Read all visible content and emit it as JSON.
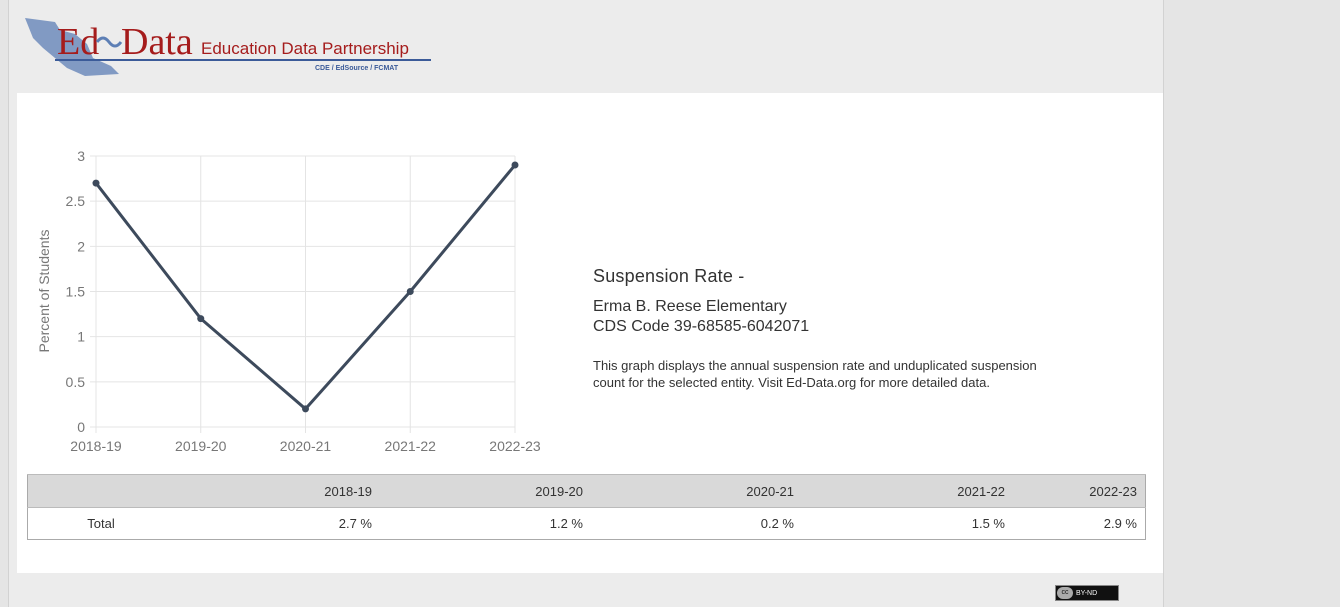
{
  "header": {
    "logo_ed": "Ed",
    "logo_data": "Data",
    "logo_partnership": "Education Data Partnership",
    "logo_sub": "CDE / EdSource / FCMAT"
  },
  "chart_data": {
    "type": "line",
    "categories": [
      "2018-19",
      "2019-20",
      "2020-21",
      "2021-22",
      "2022-23"
    ],
    "series": [
      {
        "values": [
          2.7,
          1.2,
          0.2,
          1.5,
          2.9
        ]
      }
    ],
    "ylabel": "Percent of Students",
    "xlabel": "",
    "ylim": [
      0,
      3
    ],
    "yticks": [
      "0",
      "0.5",
      "1",
      "1.5",
      "2",
      "2.5",
      "3"
    ],
    "grid": true,
    "line_color": "#3d4a5c"
  },
  "info": {
    "title": "Suspension Rate -",
    "entity": "Erma B. Reese Elementary",
    "cds": "CDS Code 39-68585-6042071",
    "description": "This graph displays the annual suspension rate and unduplicated suspension count for the selected entity. Visit Ed-Data.org for more detailed data."
  },
  "table": {
    "headers": [
      "",
      "2018-19",
      "2019-20",
      "2020-21",
      "2021-22",
      "2022-23"
    ],
    "rows": [
      {
        "label": "Total",
        "values": [
          "2.7 %",
          "1.2 %",
          "0.2 %",
          "1.5 %",
          "2.9 %"
        ]
      }
    ]
  },
  "footer": {
    "license": "BY-ND",
    "cc": "cc"
  }
}
